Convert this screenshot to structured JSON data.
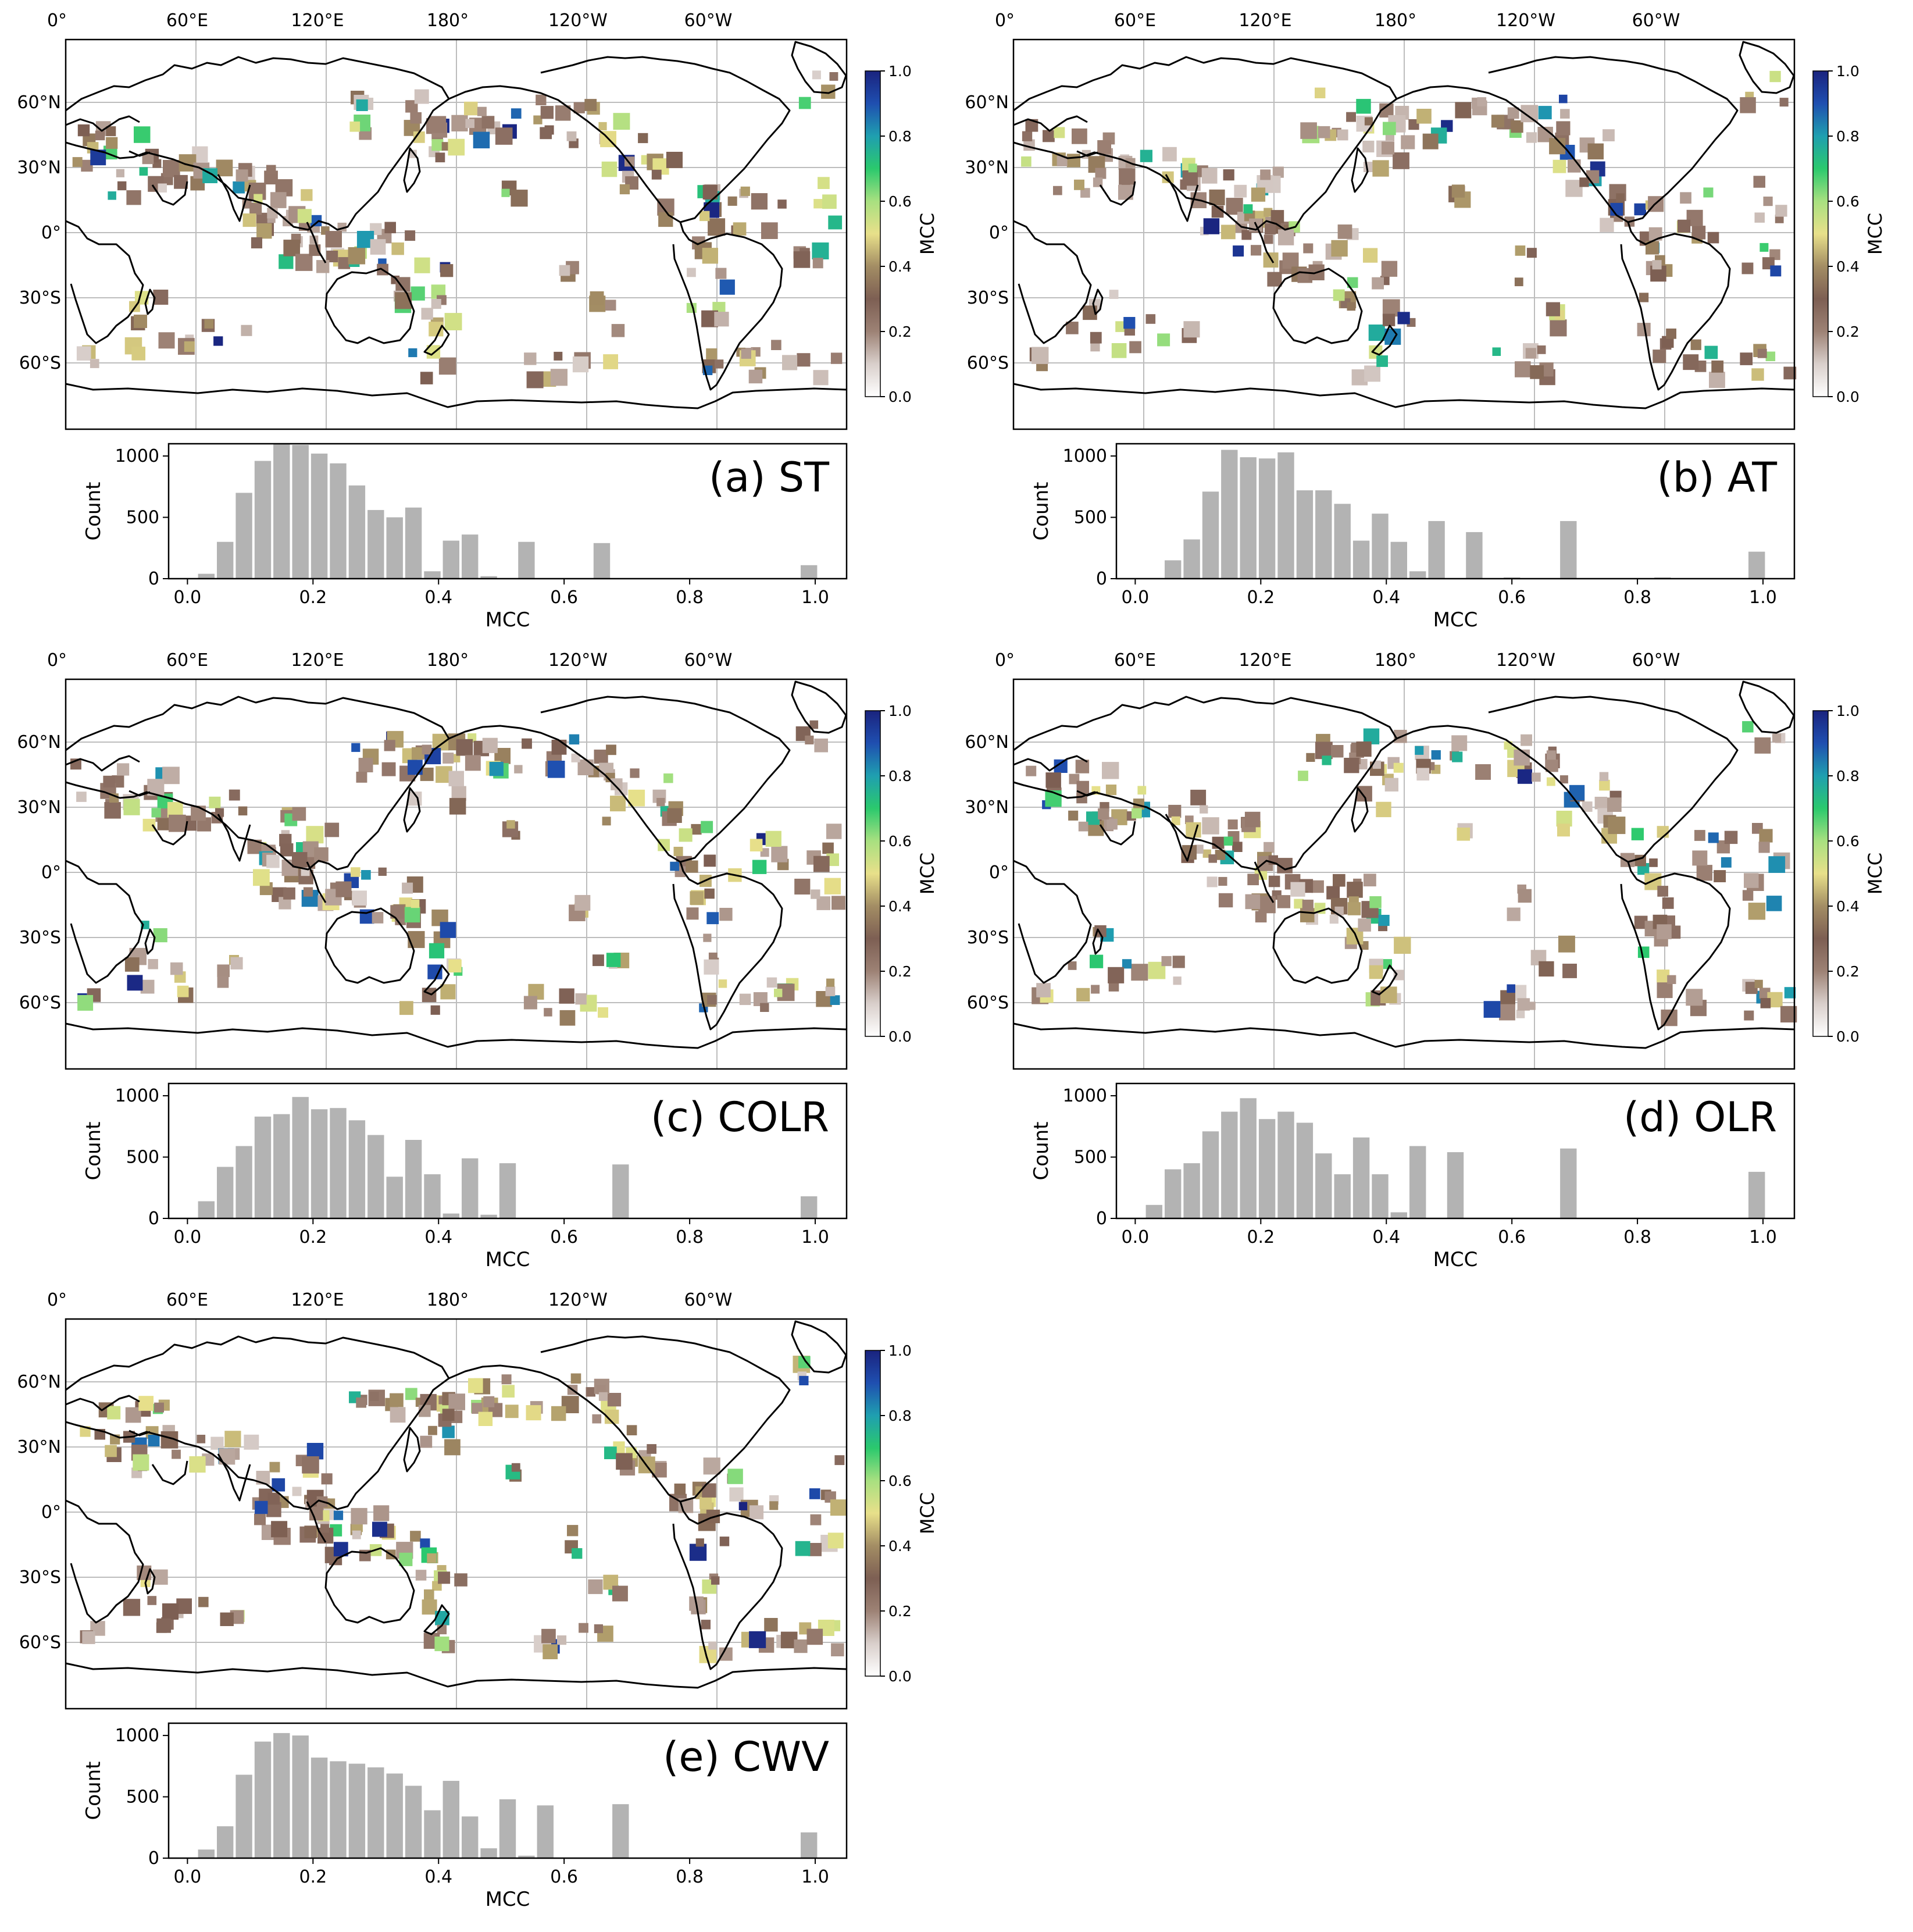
{
  "figure": {
    "colors": {
      "bar": "#b3b3b3",
      "grid": "#bdbdbd",
      "coast": "#000000",
      "colormap": [
        "#ffffff",
        "#d9cfcb",
        "#9d8275",
        "#7d5f53",
        "#a38d64",
        "#e8e08a",
        "#a8e080",
        "#2bc96d",
        "#1f9fb0",
        "#1f4fb0",
        "#1a237e"
      ]
    },
    "colorbar": {
      "label": "MCC",
      "ticks": [
        "0.0",
        "0.2",
        "0.4",
        "0.6",
        "0.8",
        "1.0"
      ]
    },
    "map": {
      "lon_ticks": [
        "0°",
        "60°E",
        "120°E",
        "180°",
        "120°W",
        "60°W"
      ],
      "lat_ticks": [
        "60°N",
        "30°N",
        "0°",
        "30°S",
        "60°S"
      ]
    }
  },
  "chart_data": [
    {
      "type": "bar",
      "panel_label": "(a) ST",
      "xlabel": "MCC",
      "ylabel": "Count",
      "xlim": [
        -0.03,
        1.05
      ],
      "ylim": [
        0,
        1100
      ],
      "xticks": [
        "0.0",
        "0.2",
        "0.4",
        "0.6",
        "0.8",
        "1.0"
      ],
      "yticks": [
        "0",
        "500",
        "1000"
      ],
      "bin_width": 0.03,
      "x": [
        0.03,
        0.06,
        0.09,
        0.12,
        0.15,
        0.18,
        0.21,
        0.24,
        0.27,
        0.3,
        0.33,
        0.36,
        0.39,
        0.42,
        0.45,
        0.48,
        0.51,
        0.54,
        0.57,
        0.6,
        0.63,
        0.66,
        0.69,
        0.72,
        0.99
      ],
      "values": [
        40,
        300,
        700,
        960,
        1100,
        1090,
        1020,
        940,
        760,
        560,
        500,
        580,
        60,
        310,
        360,
        20,
        0,
        300,
        0,
        0,
        0,
        290,
        0,
        0,
        110
      ]
    },
    {
      "type": "bar",
      "panel_label": "(b) AT",
      "xlabel": "MCC",
      "ylabel": "Count",
      "xlim": [
        -0.03,
        1.05
      ],
      "ylim": [
        0,
        1100
      ],
      "xticks": [
        "0.0",
        "0.2",
        "0.4",
        "0.6",
        "0.8",
        "1.0"
      ],
      "yticks": [
        "0",
        "500",
        "1000"
      ],
      "bin_width": 0.03,
      "x": [
        0.06,
        0.09,
        0.12,
        0.15,
        0.18,
        0.21,
        0.24,
        0.27,
        0.3,
        0.33,
        0.36,
        0.39,
        0.42,
        0.45,
        0.48,
        0.51,
        0.54,
        0.57,
        0.6,
        0.63,
        0.66,
        0.69,
        0.84,
        0.99
      ],
      "values": [
        150,
        320,
        710,
        1050,
        990,
        980,
        1030,
        720,
        720,
        610,
        310,
        530,
        300,
        60,
        470,
        0,
        380,
        0,
        10,
        0,
        0,
        470,
        10,
        220
      ]
    },
    {
      "type": "bar",
      "panel_label": "(c) COLR",
      "xlabel": "MCC",
      "ylabel": "Count",
      "xlim": [
        -0.03,
        1.05
      ],
      "ylim": [
        0,
        1100
      ],
      "xticks": [
        "0.0",
        "0.2",
        "0.4",
        "0.6",
        "0.8",
        "1.0"
      ],
      "yticks": [
        "0",
        "500",
        "1000"
      ],
      "bin_width": 0.03,
      "x": [
        0.03,
        0.06,
        0.09,
        0.12,
        0.15,
        0.18,
        0.21,
        0.24,
        0.27,
        0.3,
        0.33,
        0.36,
        0.39,
        0.42,
        0.45,
        0.48,
        0.51,
        0.54,
        0.57,
        0.6,
        0.63,
        0.66,
        0.69,
        0.99
      ],
      "values": [
        140,
        420,
        590,
        830,
        850,
        990,
        890,
        900,
        800,
        680,
        340,
        640,
        360,
        40,
        490,
        30,
        450,
        0,
        0,
        0,
        0,
        0,
        440,
        180
      ]
    },
    {
      "type": "bar",
      "panel_label": "(d) OLR",
      "xlabel": "MCC",
      "ylabel": "Count",
      "xlim": [
        -0.03,
        1.05
      ],
      "ylim": [
        0,
        1100
      ],
      "xticks": [
        "0.0",
        "0.2",
        "0.4",
        "0.6",
        "0.8",
        "1.0"
      ],
      "yticks": [
        "0",
        "500",
        "1000"
      ],
      "bin_width": 0.03,
      "x": [
        0.03,
        0.06,
        0.09,
        0.12,
        0.15,
        0.18,
        0.21,
        0.24,
        0.27,
        0.3,
        0.33,
        0.36,
        0.39,
        0.42,
        0.45,
        0.48,
        0.51,
        0.54,
        0.57,
        0.6,
        0.63,
        0.66,
        0.69,
        0.99
      ],
      "values": [
        110,
        400,
        450,
        710,
        870,
        980,
        810,
        870,
        780,
        530,
        360,
        660,
        360,
        50,
        590,
        0,
        540,
        0,
        0,
        0,
        0,
        0,
        570,
        380
      ]
    },
    {
      "type": "bar",
      "panel_label": "(e) CWV",
      "xlabel": "MCC",
      "ylabel": "Count",
      "xlim": [
        -0.03,
        1.05
      ],
      "ylim": [
        0,
        1100
      ],
      "xticks": [
        "0.0",
        "0.2",
        "0.4",
        "0.6",
        "0.8",
        "1.0"
      ],
      "yticks": [
        "0",
        "500",
        "1000"
      ],
      "bin_width": 0.03,
      "x": [
        0.03,
        0.06,
        0.09,
        0.12,
        0.15,
        0.18,
        0.21,
        0.24,
        0.27,
        0.3,
        0.33,
        0.36,
        0.39,
        0.42,
        0.45,
        0.48,
        0.51,
        0.54,
        0.57,
        0.6,
        0.63,
        0.66,
        0.69,
        0.99
      ],
      "values": [
        70,
        260,
        680,
        950,
        1020,
        1000,
        820,
        790,
        770,
        740,
        690,
        590,
        390,
        630,
        340,
        80,
        480,
        20,
        430,
        0,
        0,
        0,
        440,
        210
      ]
    }
  ]
}
